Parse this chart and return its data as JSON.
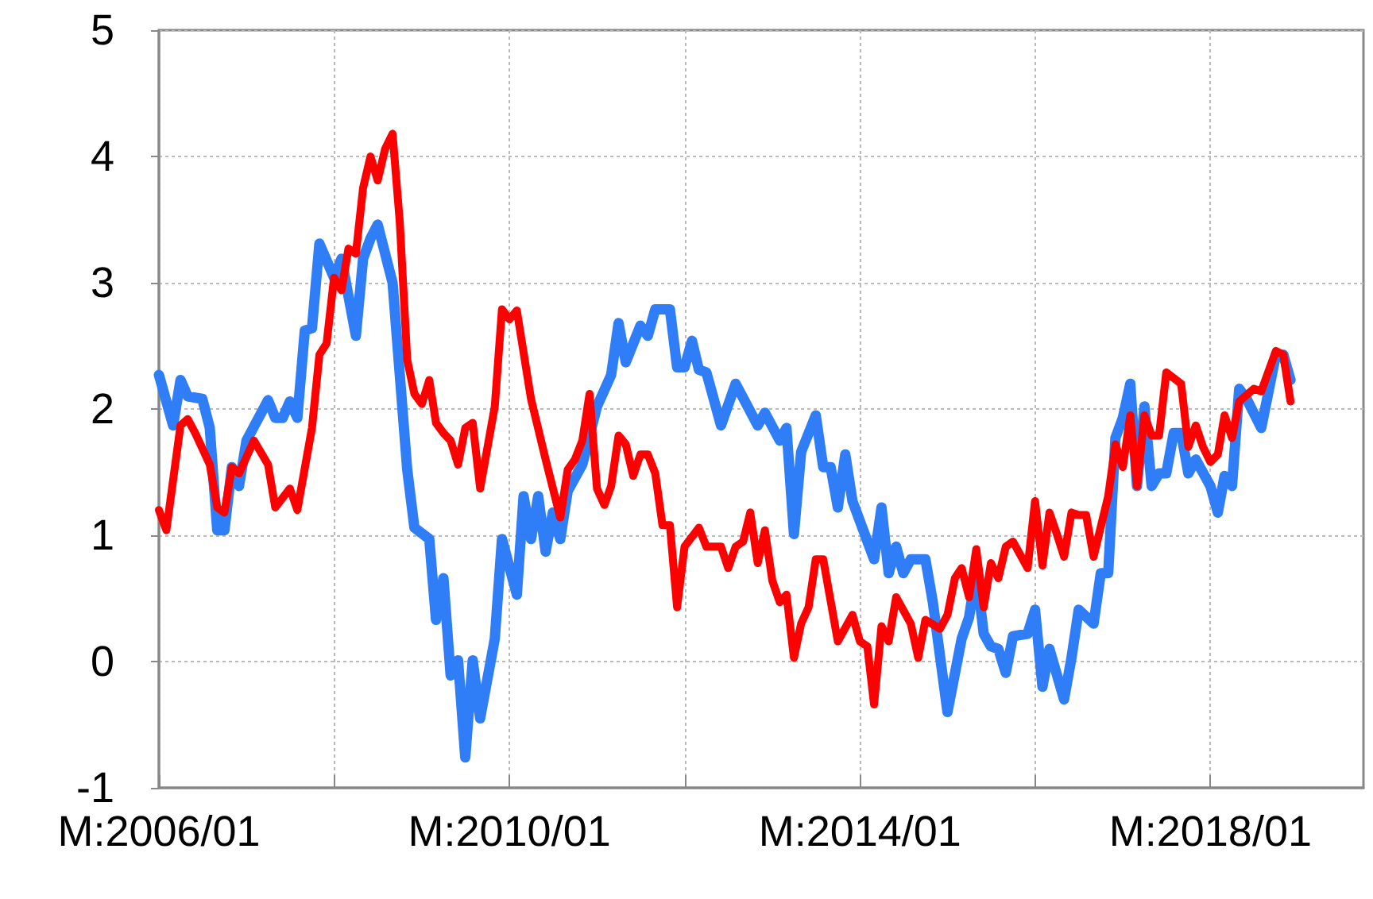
{
  "chart_data": {
    "type": "line",
    "xlim": [
      "2006-01",
      "2019-10"
    ],
    "xticks": [
      {
        "value": "2006-01",
        "label": "M:2006/01"
      },
      {
        "value": "2008-01",
        "label": null
      },
      {
        "value": "2010-01",
        "label": "M:2010/01"
      },
      {
        "value": "2012-01",
        "label": null
      },
      {
        "value": "2014-01",
        "label": "M:2014/01"
      },
      {
        "value": "2016-01",
        "label": null
      },
      {
        "value": "2018-01",
        "label": "M:2018/01"
      }
    ],
    "ylim": [
      -1,
      5
    ],
    "yticks": [
      -1,
      0,
      1,
      2,
      3,
      4,
      5
    ],
    "grid": true,
    "marker": "none",
    "line_style": "solid",
    "series": [
      {
        "color": "#2f7ef7",
        "x": [
          "2006-01",
          "2006-03",
          "2006-04",
          "2006-05",
          "2006-07",
          "2006-08",
          "2006-09",
          "2006-10",
          "2006-11",
          "2006-12",
          "2007-01",
          "2007-04",
          "2007-05",
          "2007-06",
          "2007-07",
          "2007-08",
          "2007-09",
          "2007-10",
          "2007-11",
          "2008-01",
          "2008-02",
          "2008-04",
          "2008-05",
          "2008-06",
          "2008-07",
          "2008-09",
          "2008-11",
          "2008-12",
          "2009-02",
          "2009-03",
          "2009-04",
          "2009-05",
          "2009-06",
          "2009-07",
          "2009-08",
          "2009-09",
          "2009-11",
          "2009-12",
          "2010-02",
          "2010-03",
          "2010-04",
          "2010-05",
          "2010-06",
          "2010-07",
          "2010-08",
          "2010-09",
          "2010-11",
          "2011-01",
          "2011-03",
          "2011-04",
          "2011-05",
          "2011-07",
          "2011-08",
          "2011-09",
          "2011-11",
          "2011-12",
          "2012-01",
          "2012-02",
          "2012-03",
          "2012-04",
          "2012-06",
          "2012-08",
          "2012-11",
          "2012-12",
          "2013-02",
          "2013-03",
          "2013-04",
          "2013-05",
          "2013-07",
          "2013-08",
          "2013-09",
          "2013-10",
          "2013-11",
          "2013-12",
          "2014-03",
          "2014-04",
          "2014-05",
          "2014-06",
          "2014-07",
          "2014-08",
          "2014-10",
          "2014-11",
          "2015-01",
          "2015-03",
          "2015-04",
          "2015-05",
          "2015-06",
          "2015-07",
          "2015-08",
          "2015-09",
          "2015-10",
          "2015-12",
          "2016-01",
          "2016-02",
          "2016-03",
          "2016-05",
          "2016-06",
          "2016-07",
          "2016-09",
          "2016-10",
          "2016-11",
          "2016-12",
          "2017-01",
          "2017-02",
          "2017-03",
          "2017-04",
          "2017-05",
          "2017-06",
          "2017-07",
          "2017-08",
          "2017-09",
          "2017-10",
          "2017-11",
          "2018-01",
          "2018-02",
          "2018-03",
          "2018-04",
          "2018-05",
          "2018-06",
          "2018-08",
          "2018-10",
          "2018-11",
          "2018-12"
        ],
        "values": [
          2.27,
          1.87,
          2.23,
          2.1,
          2.08,
          1.85,
          1.04,
          1.04,
          1.54,
          1.39,
          1.75,
          2.07,
          1.93,
          1.93,
          2.06,
          1.93,
          2.62,
          2.64,
          3.31,
          3.04,
          3.19,
          2.58,
          3.19,
          3.35,
          3.46,
          3.0,
          1.52,
          1.06,
          0.97,
          0.33,
          0.66,
          -0.11,
          0.01,
          -0.76,
          0.01,
          -0.45,
          0.18,
          0.97,
          0.53,
          1.31,
          0.97,
          1.31,
          0.87,
          1.18,
          0.97,
          1.35,
          1.56,
          2.02,
          2.27,
          2.68,
          2.37,
          2.66,
          2.58,
          2.79,
          2.79,
          2.33,
          2.33,
          2.54,
          2.31,
          2.29,
          1.87,
          2.2,
          1.87,
          1.97,
          1.75,
          1.85,
          1.01,
          1.66,
          1.95,
          1.54,
          1.54,
          1.22,
          1.64,
          1.27,
          0.81,
          1.22,
          0.7,
          0.91,
          0.7,
          0.81,
          0.81,
          0.47,
          -0.4,
          0.18,
          0.35,
          0.72,
          0.22,
          0.12,
          0.1,
          -0.09,
          0.2,
          0.22,
          0.41,
          -0.2,
          0.1,
          -0.3,
          0.03,
          0.41,
          0.3,
          0.7,
          0.7,
          1.77,
          1.93,
          2.2,
          1.39,
          2.02,
          1.39,
          1.49,
          1.49,
          1.81,
          1.81,
          1.49,
          1.6,
          1.39,
          1.18,
          1.47,
          1.39,
          2.16,
          2.08,
          1.85,
          2.43,
          2.43,
          2.23
        ]
      },
      {
        "color": "#ff0000",
        "x": [
          "2006-01",
          "2006-02",
          "2006-04",
          "2006-05",
          "2006-06",
          "2006-08",
          "2006-09",
          "2006-10",
          "2006-11",
          "2006-12",
          "2007-02",
          "2007-04",
          "2007-05",
          "2007-07",
          "2007-08",
          "2007-10",
          "2007-11",
          "2007-12",
          "2008-01",
          "2008-02",
          "2008-03",
          "2008-04",
          "2008-05",
          "2008-06",
          "2008-07",
          "2008-08",
          "2008-09",
          "2008-10",
          "2008-11",
          "2008-12",
          "2009-01",
          "2009-02",
          "2009-03",
          "2009-04",
          "2009-05",
          "2009-06",
          "2009-07",
          "2009-08",
          "2009-09",
          "2009-11",
          "2009-12",
          "2010-01",
          "2010-02",
          "2010-04",
          "2010-06",
          "2010-08",
          "2010-09",
          "2010-10",
          "2010-11",
          "2010-12",
          "2011-01",
          "2011-02",
          "2011-03",
          "2011-04",
          "2011-05",
          "2011-06",
          "2011-07",
          "2011-08",
          "2011-09",
          "2011-10",
          "2011-11",
          "2011-12",
          "2012-01",
          "2012-03",
          "2012-04",
          "2012-06",
          "2012-07",
          "2012-08",
          "2012-09",
          "2012-10",
          "2012-11",
          "2012-12",
          "2013-01",
          "2013-02",
          "2013-03",
          "2013-04",
          "2013-05",
          "2013-06",
          "2013-07",
          "2013-08",
          "2013-10",
          "2013-12",
          "2014-01",
          "2014-02",
          "2014-03",
          "2014-04",
          "2014-05",
          "2014-06",
          "2014-08",
          "2014-09",
          "2014-10",
          "2014-12",
          "2015-01",
          "2015-02",
          "2015-03",
          "2015-04",
          "2015-05",
          "2015-06",
          "2015-07",
          "2015-08",
          "2015-09",
          "2015-10",
          "2015-12",
          "2016-01",
          "2016-02",
          "2016-03",
          "2016-04",
          "2016-05",
          "2016-06",
          "2016-07",
          "2016-08",
          "2016-09",
          "2016-11",
          "2016-12",
          "2017-01",
          "2017-02",
          "2017-03",
          "2017-04",
          "2017-05",
          "2017-06",
          "2017-07",
          "2017-09",
          "2017-10",
          "2017-11",
          "2017-12",
          "2018-01",
          "2018-02",
          "2018-03",
          "2018-04",
          "2018-05",
          "2018-07",
          "2018-08",
          "2018-10",
          "2018-11",
          "2018-12"
        ],
        "values": [
          1.2,
          1.04,
          1.87,
          1.92,
          1.81,
          1.56,
          1.22,
          1.18,
          1.54,
          1.49,
          1.75,
          1.56,
          1.22,
          1.37,
          1.2,
          1.85,
          2.43,
          2.52,
          3.04,
          2.94,
          3.27,
          3.23,
          3.75,
          4.0,
          3.81,
          4.06,
          4.18,
          3.48,
          2.39,
          2.12,
          2.04,
          2.23,
          1.89,
          1.81,
          1.75,
          1.56,
          1.85,
          1.89,
          1.37,
          2.02,
          2.79,
          2.71,
          2.78,
          2.08,
          1.6,
          1.14,
          1.52,
          1.6,
          1.75,
          2.12,
          1.37,
          1.24,
          1.39,
          1.79,
          1.72,
          1.47,
          1.64,
          1.64,
          1.49,
          1.08,
          1.08,
          0.43,
          0.91,
          1.06,
          0.91,
          0.91,
          0.74,
          0.91,
          0.95,
          1.18,
          0.78,
          1.04,
          0.64,
          0.47,
          0.53,
          0.03,
          0.3,
          0.43,
          0.81,
          0.81,
          0.16,
          0.37,
          0.16,
          0.12,
          -0.34,
          0.28,
          0.16,
          0.51,
          0.3,
          0.03,
          0.33,
          0.26,
          0.37,
          0.66,
          0.74,
          0.51,
          0.89,
          0.43,
          0.78,
          0.66,
          0.91,
          0.95,
          0.74,
          1.27,
          0.76,
          1.18,
          1.01,
          0.83,
          1.18,
          1.16,
          1.16,
          0.83,
          1.31,
          1.72,
          1.54,
          1.95,
          1.39,
          1.95,
          1.79,
          1.79,
          2.29,
          2.2,
          1.7,
          1.87,
          1.7,
          1.58,
          1.64,
          1.95,
          1.77,
          2.06,
          2.16,
          2.14,
          2.46,
          2.43,
          2.06
        ]
      }
    ]
  }
}
